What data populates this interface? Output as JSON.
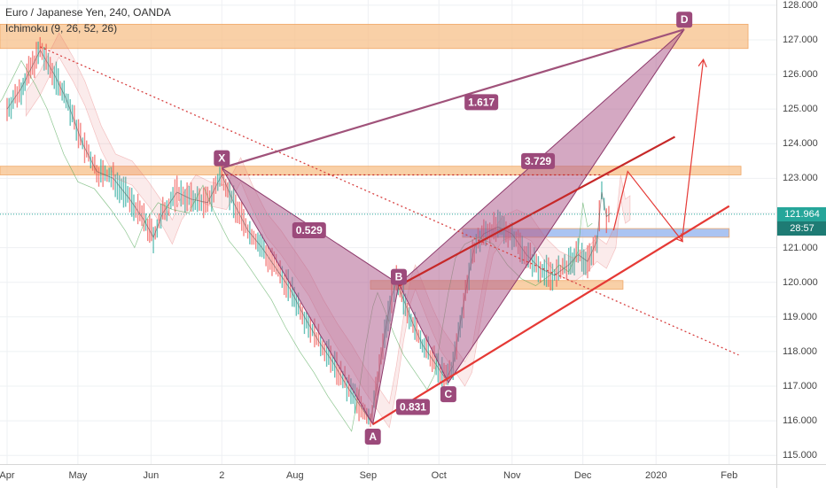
{
  "legend": {
    "title": "Euro / Japanese Yen, 240, OANDA",
    "indicator": "Ichimoku (9, 26, 52, 26)"
  },
  "price_axis": {
    "last_price": "121.964",
    "countdown": "28:57",
    "last_price_color": "#26a69a",
    "countdown_color": "#1e7b74"
  },
  "chart_data": {
    "type": "line",
    "title": "Euro / Japanese Yen, 240, OANDA",
    "xlabel": "",
    "ylabel": "",
    "y_ticks": [
      115,
      116,
      117,
      118,
      119,
      120,
      121,
      122,
      123,
      124,
      125,
      126,
      127,
      128
    ],
    "y_tick_labels": [
      "115.000",
      "116.000",
      "117.000",
      "118.000",
      "119.000",
      "120.000",
      "121.000",
      "122.000",
      "123.000",
      "124.000",
      "125.000",
      "126.000",
      "127.000",
      "128.000"
    ],
    "ylim": [
      114.75,
      128.15
    ],
    "x_ticks": [
      {
        "label": "Apr",
        "t": 0
      },
      {
        "label": "May",
        "t": 30
      },
      {
        "label": "Jun",
        "t": 61
      },
      {
        "label": "2",
        "t": 91
      },
      {
        "label": "Aug",
        "t": 122
      },
      {
        "label": "Sep",
        "t": 153
      },
      {
        "label": "Oct",
        "t": 183
      },
      {
        "label": "Nov",
        "t": 214
      },
      {
        "label": "Dec",
        "t": 244
      },
      {
        "label": "2020",
        "t": 275
      },
      {
        "label": "Feb",
        "t": 306
      }
    ],
    "xlim": [
      -3,
      326
    ],
    "grid": true,
    "price_path": [
      [
        0,
        125.0
      ],
      [
        6,
        125.6
      ],
      [
        14,
        126.7
      ],
      [
        20,
        126.0
      ],
      [
        25,
        125.3
      ],
      [
        32,
        124.0
      ],
      [
        38,
        123.2
      ],
      [
        45,
        123.0
      ],
      [
        52,
        122.4
      ],
      [
        58,
        121.8
      ],
      [
        62,
        121.3
      ],
      [
        66,
        122.0
      ],
      [
        72,
        122.6
      ],
      [
        78,
        122.4
      ],
      [
        85,
        122.3
      ],
      [
        91,
        123.1
      ],
      [
        96,
        122.3
      ],
      [
        102,
        121.5
      ],
      [
        108,
        121.0
      ],
      [
        114,
        120.4
      ],
      [
        120,
        119.8
      ],
      [
        126,
        119.0
      ],
      [
        132,
        118.3
      ],
      [
        138,
        117.7
      ],
      [
        144,
        117.0
      ],
      [
        150,
        116.4
      ],
      [
        154,
        116.0
      ],
      [
        157,
        117.1
      ],
      [
        160,
        118.5
      ],
      [
        163,
        119.6
      ],
      [
        165,
        120.0
      ],
      [
        168,
        119.5
      ],
      [
        172,
        118.8
      ],
      [
        176,
        118.2
      ],
      [
        181,
        117.7
      ],
      [
        186,
        117.2
      ],
      [
        189,
        117.6
      ],
      [
        192,
        118.8
      ],
      [
        195,
        120.0
      ],
      [
        198,
        121.0
      ],
      [
        202,
        121.4
      ],
      [
        208,
        121.6
      ],
      [
        214,
        121.4
      ],
      [
        220,
        120.8
      ],
      [
        226,
        120.4
      ],
      [
        232,
        120.2
      ],
      [
        238,
        120.5
      ],
      [
        242,
        120.8
      ],
      [
        246,
        120.6
      ],
      [
        250,
        121.2
      ],
      [
        252,
        122.6
      ],
      [
        254,
        121.9
      ],
      [
        256,
        122.0
      ]
    ],
    "fill_color": "#b06090",
    "harmonic_pattern": {
      "points": [
        {
          "label": "X",
          "t": 91,
          "price": 123.3
        },
        {
          "label": "A",
          "t": 155,
          "price": 115.9
        },
        {
          "label": "B",
          "t": 166,
          "price": 119.95
        },
        {
          "label": "C",
          "t": 187,
          "price": 117.1
        },
        {
          "label": "D",
          "t": 287,
          "price": 127.3
        }
      ],
      "ratios": [
        {
          "value": "1.617",
          "t": 201,
          "price": 125.2
        },
        {
          "value": "0.529",
          "t": 128,
          "price": 121.5
        },
        {
          "value": "0.831",
          "t": 172,
          "price": 116.4
        },
        {
          "value": "3.729",
          "t": 225,
          "price": 123.5
        }
      ]
    },
    "zones": [
      {
        "t1": -3,
        "t2": 314,
        "price_low": 126.75,
        "price_high": 127.45,
        "color": "#f7c089"
      },
      {
        "t1": -3,
        "t2": 311,
        "price_low": 123.1,
        "price_high": 123.35,
        "color": "#f7c089"
      },
      {
        "t1": 193,
        "t2": 306,
        "price_low": 121.3,
        "price_high": 121.55,
        "color": "#8fb0ee"
      },
      {
        "t1": 154,
        "t2": 261,
        "price_low": 119.8,
        "price_high": 120.05,
        "color": "#f7c089"
      }
    ],
    "lines": [
      {
        "from": [
          155,
          115.9
        ],
        "to": [
          306,
          122.2
        ],
        "color": "#e53935",
        "style": "solid"
      },
      {
        "from": [
          166,
          119.9
        ],
        "to": [
          283,
          124.2
        ],
        "color": "#c62828",
        "style": "solid"
      },
      {
        "from": [
          14,
          126.8
        ],
        "to": [
          310,
          117.9
        ],
        "color": "#d84343",
        "style": "dotted"
      },
      {
        "from": [
          91,
          123.1
        ],
        "to": [
          256,
          123.1
        ],
        "color": "#c62828",
        "style": "dotted"
      },
      {
        "from": [
          91,
          123.3
        ],
        "to": [
          287,
          127.3
        ],
        "color": "#a0527a",
        "style": "solid"
      }
    ],
    "projection_arrows": [
      {
        "path": [
          [
            257,
            121.5
          ],
          [
            263,
            123.2
          ],
          [
            286,
            121.2
          ]
        ],
        "color": "#e53935"
      },
      {
        "path": [
          [
            286,
            121.2
          ],
          [
            295,
            126.4
          ]
        ],
        "color": "#e53935"
      }
    ],
    "current_price": 121.964
  }
}
